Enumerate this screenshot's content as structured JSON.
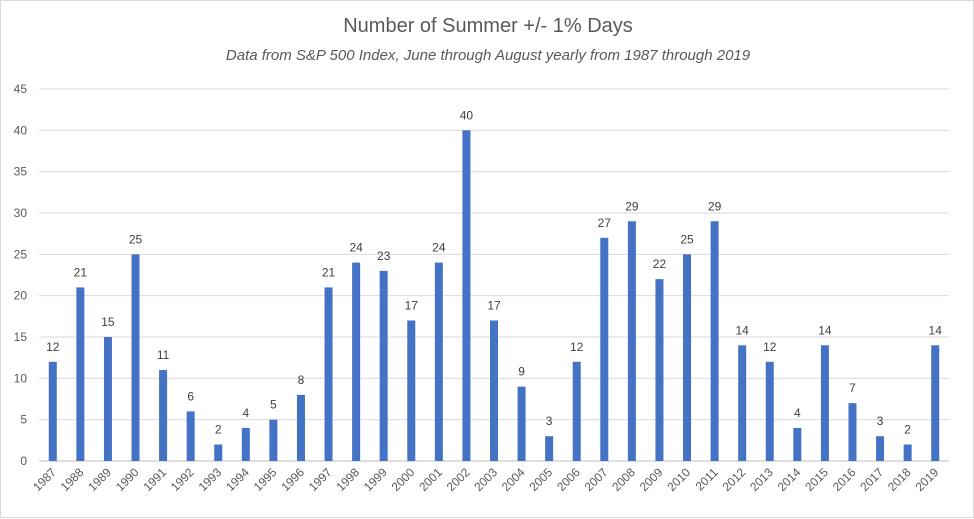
{
  "chart_data": {
    "type": "bar",
    "title": "Number of Summer +/- 1% Days",
    "subtitle": "Data from S&P 500 Index, June through August yearly from 1987 through 2019",
    "xlabel": "",
    "ylabel": "",
    "ylim": [
      0,
      45
    ],
    "yticks": [
      0,
      5,
      10,
      15,
      20,
      25,
      30,
      35,
      40,
      45
    ],
    "grid": true,
    "bar_color": "#4472C4",
    "categories": [
      "1987",
      "1988",
      "1989",
      "1990",
      "1991",
      "1992",
      "1993",
      "1994",
      "1995",
      "1996",
      "1997",
      "1998",
      "1999",
      "2000",
      "2001",
      "2002",
      "2003",
      "2004",
      "2005",
      "2006",
      "2007",
      "2008",
      "2009",
      "2010",
      "2011",
      "2012",
      "2013",
      "2014",
      "2015",
      "2016",
      "2017",
      "2018",
      "2019"
    ],
    "values": [
      12,
      21,
      15,
      25,
      11,
      6,
      2,
      4,
      5,
      8,
      21,
      24,
      23,
      17,
      24,
      40,
      17,
      9,
      3,
      12,
      27,
      29,
      22,
      25,
      29,
      14,
      12,
      4,
      14,
      7,
      3,
      2,
      14
    ]
  }
}
